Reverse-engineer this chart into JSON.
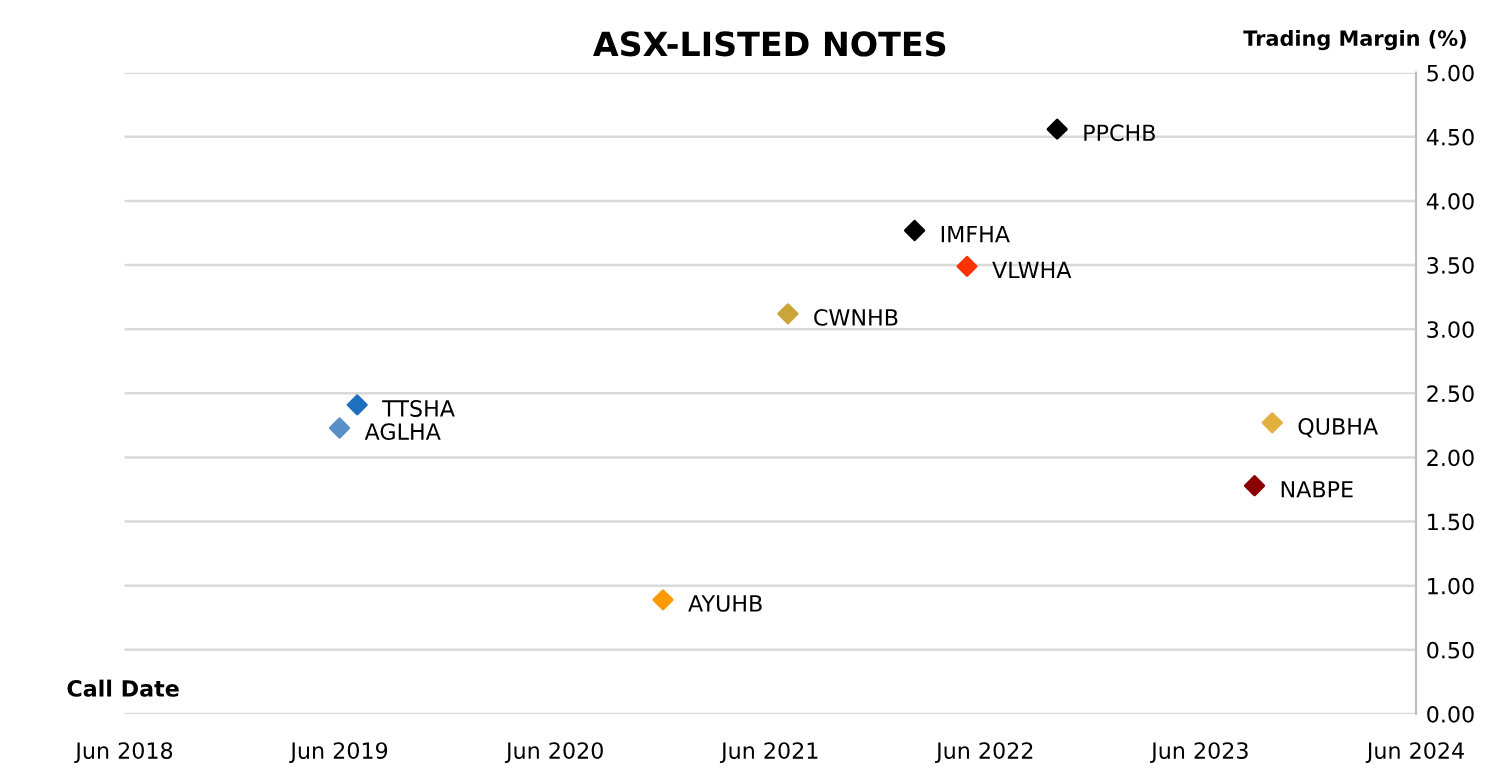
{
  "chart_data": {
    "type": "scatter",
    "title": "ASX-LISTED NOTES",
    "xlabel": "Call Date",
    "ylabel": "Trading Margin (%)",
    "series": [
      {
        "name": "PPCHB",
        "color": "#000000",
        "x": [
          "2022-10"
        ],
        "values": [
          4.56
        ]
      },
      {
        "name": "IMFHA",
        "color": "#000000",
        "x": [
          "2022-02"
        ],
        "values": [
          3.77
        ]
      },
      {
        "name": "VLWHA",
        "color": "#ff3300",
        "x": [
          "2022-05"
        ],
        "values": [
          3.49
        ]
      },
      {
        "name": "CWNHB",
        "color": "#c9a53a",
        "x": [
          "2021-07"
        ],
        "values": [
          3.12
        ]
      },
      {
        "name": "TTSHA",
        "color": "#1f6fc0",
        "x": [
          "2019-07"
        ],
        "values": [
          2.41
        ]
      },
      {
        "name": "AGLHA",
        "color": "#5b8fc9",
        "x": [
          "2019-06"
        ],
        "values": [
          2.23
        ]
      },
      {
        "name": "QUBHA",
        "color": "#e0b040",
        "x": [
          "2023-10"
        ],
        "values": [
          2.27
        ]
      },
      {
        "name": "NABPE",
        "color": "#8b0000",
        "x": [
          "2023-09"
        ],
        "values": [
          1.78
        ]
      },
      {
        "name": "AYUHB",
        "color": "#ff9900",
        "x": [
          "2020-12"
        ],
        "values": [
          0.89
        ]
      }
    ],
    "xlim": [
      "2018-06",
      "2024-06"
    ],
    "xticks": [
      {
        "value": "2018-06",
        "label": "Jun 2018"
      },
      {
        "value": "2019-06",
        "label": "Jun 2019"
      },
      {
        "value": "2020-06",
        "label": "Jun 2020"
      },
      {
        "value": "2021-06",
        "label": "Jun 2021"
      },
      {
        "value": "2022-06",
        "label": "Jun 2022"
      },
      {
        "value": "2023-06",
        "label": "Jun 2023"
      },
      {
        "value": "2024-06",
        "label": "Jun 2024"
      }
    ],
    "ylim": [
      0,
      5
    ],
    "yticks": [
      {
        "value": 0,
        "label": "0.00"
      },
      {
        "value": 0.5,
        "label": "0.50"
      },
      {
        "value": 1,
        "label": "1.00"
      },
      {
        "value": 1.5,
        "label": "1.50"
      },
      {
        "value": 2,
        "label": "2.00"
      },
      {
        "value": 2.5,
        "label": "2.50"
      },
      {
        "value": 3,
        "label": "3.00"
      },
      {
        "value": 3.5,
        "label": "3.50"
      },
      {
        "value": 4,
        "label": "4.00"
      },
      {
        "value": 4.5,
        "label": "4.50"
      },
      {
        "value": 5,
        "label": "5.00"
      }
    ],
    "grid": "y",
    "marker": "diamond"
  }
}
